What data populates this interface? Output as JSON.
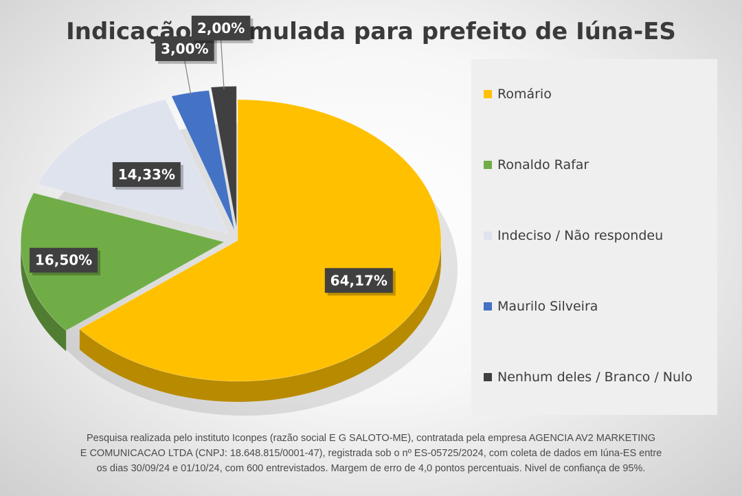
{
  "chart_data": {
    "type": "pie",
    "title": "Indicação estimulada para prefeito de Iúna-ES",
    "slices": [
      {
        "label": "Romário",
        "value": 64.17,
        "value_label": "64,17%",
        "color": "#ffc000"
      },
      {
        "label": "Ronaldo Rafar",
        "value": 16.5,
        "value_label": "16,50%",
        "color": "#70ad47"
      },
      {
        "label": "Indeciso / Não respondeu",
        "value": 14.33,
        "value_label": "14,33%",
        "color": "#dfe3ee"
      },
      {
        "label": "Maurilo Silveira",
        "value": 3.0,
        "value_label": "3,00%",
        "color": "#4472c4"
      },
      {
        "label": "Nenhum deles / Branco / Nulo",
        "value": 2.0,
        "value_label": "2,00%",
        "color": "#404040"
      }
    ],
    "legend_position": "right"
  },
  "footnote": [
    "Pesquisa realizada pelo instituto Iconpes (razão social E G SALOTO-ME), contratada pela empresa AGENCIA AV2 MARKETING",
    "E COMUNICACAO LTDA (CNPJ: 18.648.815/0001-47), registrada sob o nº ES-05725/2024, com coleta de dados em Iúna-ES entre",
    "os dias 30/09/24 e 01/10/24, com 600 entrevistados. Margem de erro de 4,0 pontos percentuais. Nivel de confiança de 95%."
  ]
}
